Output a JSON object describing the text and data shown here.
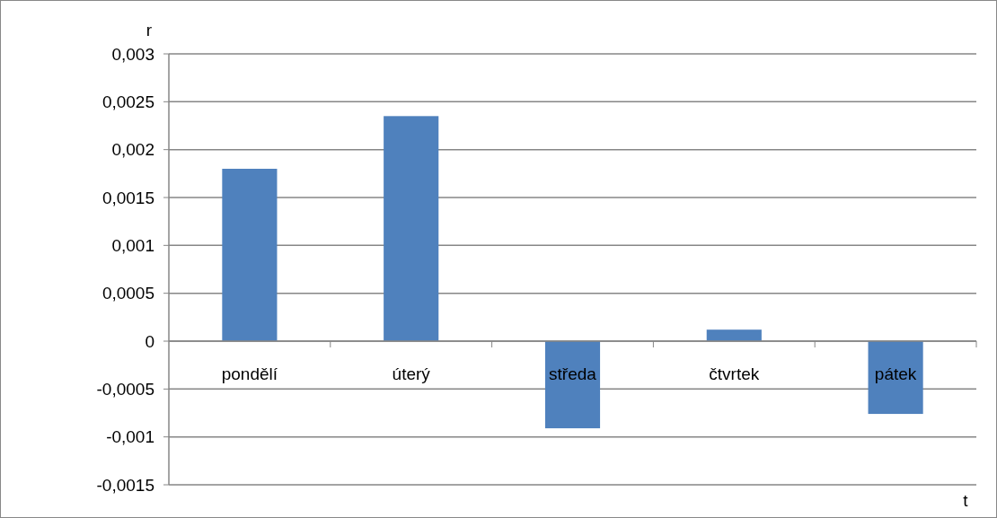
{
  "chart_data": {
    "type": "bar",
    "ylabel": "r",
    "xlabel": "t",
    "categories": [
      "pondělí",
      "úterý",
      "středa",
      "čtvrtek",
      "pátek"
    ],
    "values": [
      0.0018,
      0.00235,
      -0.00091,
      0.00012,
      -0.00076
    ],
    "color": "#4f81bd",
    "ylim": [
      -0.0015,
      0.003
    ],
    "yticks": [
      {
        "value": -0.0015,
        "label": "-0,0015"
      },
      {
        "value": -0.001,
        "label": "-0,001"
      },
      {
        "value": -0.0005,
        "label": "-0,0005"
      },
      0,
      {
        "value": 0.0005,
        "label": "0,0005"
      },
      {
        "value": 0.001,
        "label": "0,001"
      },
      {
        "value": 0.0015,
        "label": "0,0015"
      },
      {
        "value": 0.002,
        "label": "0,002"
      },
      {
        "value": 0.0025,
        "label": "0,0025"
      },
      {
        "value": 0.003,
        "label": "0,003"
      }
    ],
    "grid": "y"
  }
}
